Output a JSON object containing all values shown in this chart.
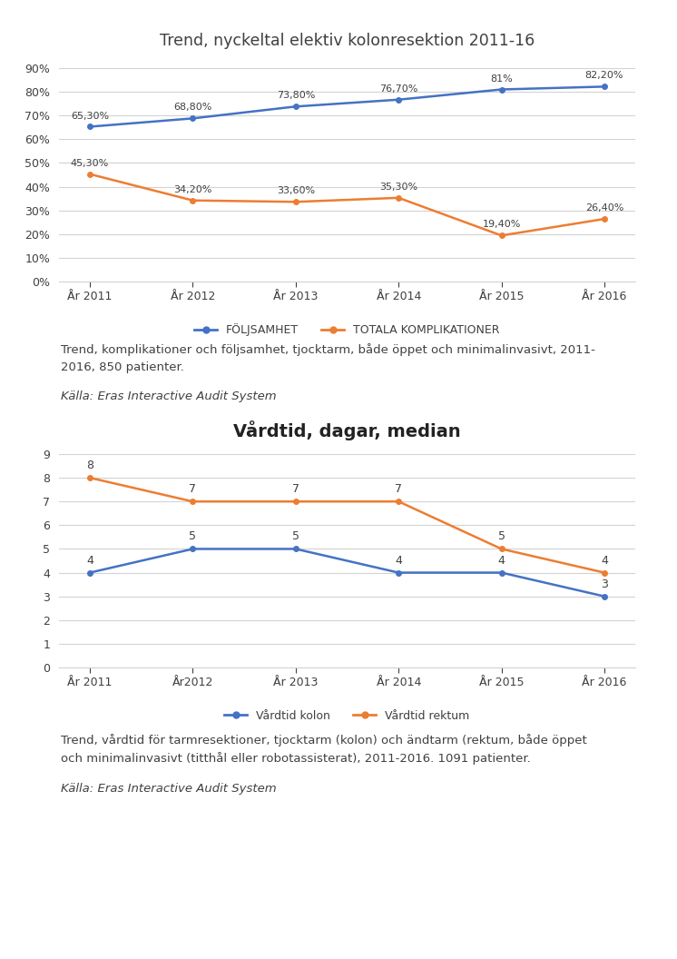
{
  "chart1": {
    "title": "Trend, nyckeltal elektiv kolonresektion 2011-16",
    "years": [
      "År 2011",
      "År 2012",
      "År 2013",
      "År 2014",
      "År 2015",
      "År 2016"
    ],
    "foljsamhet": [
      65.3,
      68.8,
      73.8,
      76.7,
      81.0,
      82.2
    ],
    "komplikationer": [
      45.3,
      34.2,
      33.6,
      35.3,
      19.4,
      26.4
    ],
    "foljsamhet_labels": [
      "65,30%",
      "68,80%",
      "73,80%",
      "76,70%",
      "81%",
      "82,20%"
    ],
    "komplikationer_labels": [
      "45,30%",
      "34,20%",
      "33,60%",
      "35,30%",
      "19,40%",
      "26,40%"
    ],
    "blue_color": "#4472C4",
    "orange_color": "#ED7D31",
    "legend1": "FÖLJSAMHET",
    "legend2": "TOTALA KOMPLIKATIONER",
    "ylim": [
      0,
      90
    ],
    "yticks": [
      0,
      10,
      20,
      30,
      40,
      50,
      60,
      70,
      80,
      90
    ],
    "ytick_labels": [
      "0%",
      "10%",
      "20%",
      "30%",
      "40%",
      "50%",
      "60%",
      "70%",
      "80%",
      "90%"
    ]
  },
  "text1_line1": "Trend, komplikationer och följsamhet, tjocktarm, både öppet och minimalinvasivt, 2011-",
  "text1_line2": "2016, 850 patienter.",
  "source1": "Källa: Eras Interactive Audit System",
  "chart2": {
    "title": "Vårdtid, dagar, median",
    "years": [
      "År 2011",
      "År2012",
      "År 2013",
      "År 2014",
      "År 2015",
      "År 2016"
    ],
    "vardtid_kolon": [
      4,
      5,
      5,
      4,
      4,
      3
    ],
    "vardtid_rektum": [
      8,
      7,
      7,
      7,
      5,
      4
    ],
    "kolon_labels": [
      "4",
      "5",
      "5",
      "4",
      "4",
      "3"
    ],
    "rektum_labels": [
      "8",
      "7",
      "7",
      "7",
      "5",
      "4"
    ],
    "blue_color": "#4472C4",
    "orange_color": "#ED7D31",
    "legend1": "Vårdtid kolon",
    "legend2": "Vårdtid rektum",
    "ylim": [
      0,
      9
    ],
    "yticks": [
      0,
      1,
      2,
      3,
      4,
      5,
      6,
      7,
      8,
      9
    ]
  },
  "text2_line1": "Trend, vårdtid för tarmresektioner, tjocktarm (kolon) och ändtarm (rektum, både öppet",
  "text2_line2": "och minimalinvasivt (titthål eller robotassisterat), 2011-2016. 1091 patienter.",
  "source2": "Källa: Eras Interactive Audit System",
  "bg_color": "#FFFFFF",
  "text_color": "#404040",
  "grid_color": "#D3D3D3"
}
